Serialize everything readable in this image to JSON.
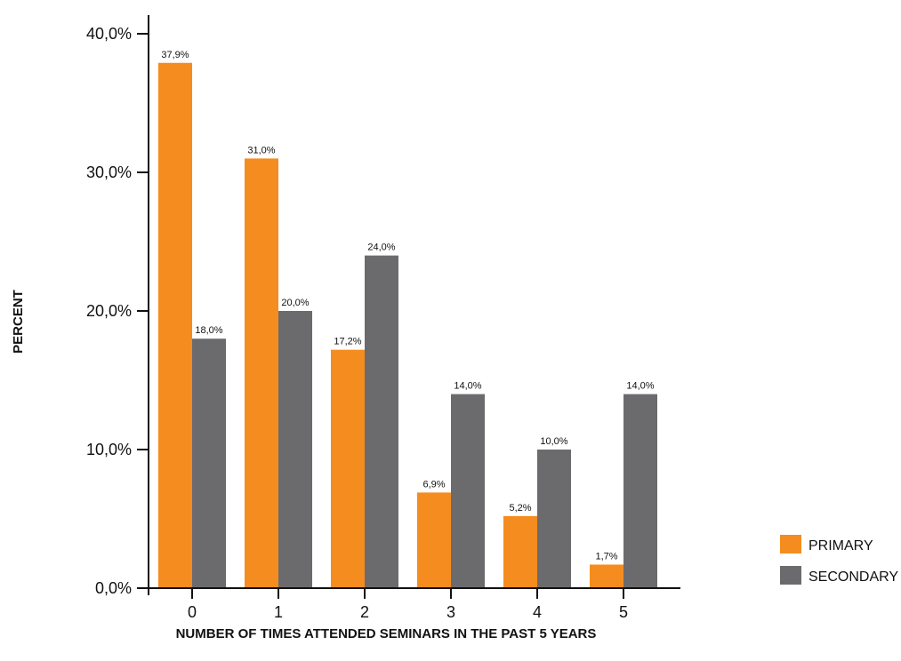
{
  "chart_data": {
    "type": "bar",
    "title": "",
    "xlabel": "NUMBER OF TIMES ATTENDED SEMINARS IN THE PAST 5 YEARS",
    "ylabel": "PERCENT",
    "categories": [
      "0",
      "1",
      "2",
      "3",
      "4",
      "5"
    ],
    "ylim": [
      0,
      40
    ],
    "yticks": [
      0,
      10,
      20,
      30,
      40
    ],
    "ytick_labels": [
      "0,0%",
      "10,0%",
      "20,0%",
      "30,0%",
      "40,0%"
    ],
    "series": [
      {
        "name": "PRIMARY",
        "color": "#f48c1f",
        "values": [
          37.9,
          31.0,
          17.2,
          6.9,
          5.2,
          1.7
        ],
        "labels": [
          "37,9%",
          "31,0%",
          "17,2%",
          "6,9%",
          "5,2%",
          "1,7%"
        ]
      },
      {
        "name": "SECONDARY",
        "color": "#6b6b6e",
        "values": [
          18.0,
          20.0,
          24.0,
          14.0,
          10.0,
          14.0
        ],
        "labels": [
          "18,0%",
          "20,0%",
          "24,0%",
          "14,0%",
          "10,0%",
          "14,0%"
        ]
      }
    ],
    "grid": false,
    "legend_position": "bottom-right"
  }
}
